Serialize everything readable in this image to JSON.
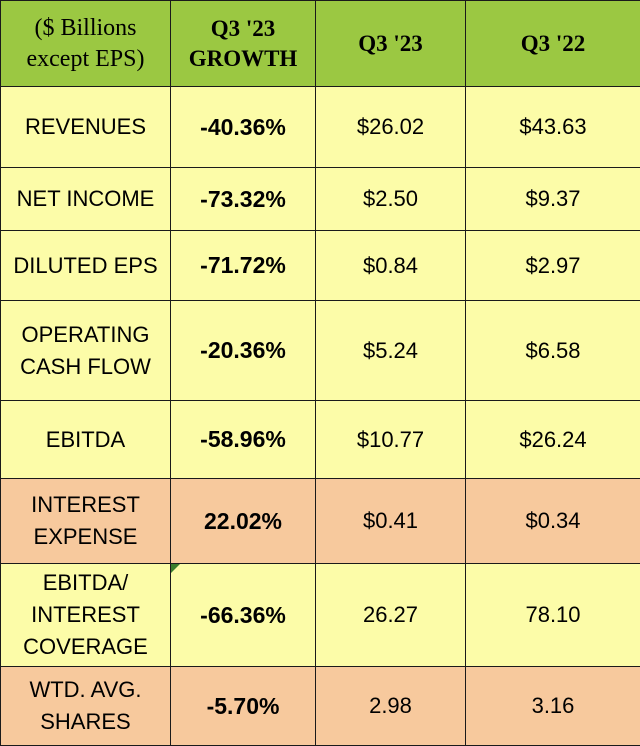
{
  "table": {
    "headers": [
      "($ Billions\nexcept EPS)",
      "Q3 '23\nGROWTH",
      "Q3 '23",
      "Q3 '22"
    ],
    "rows": [
      {
        "metric": "REVENUES",
        "growth": "-40.36%",
        "q3_23": "$26.02",
        "q3_22": "$43.63"
      },
      {
        "metric": "NET INCOME",
        "growth": "-73.32%",
        "q3_23": "$2.50",
        "q3_22": "$9.37"
      },
      {
        "metric": "DILUTED EPS",
        "growth": "-71.72%",
        "q3_23": "$0.84",
        "q3_22": "$2.97"
      },
      {
        "metric": "OPERATING\nCASH FLOW",
        "growth": "-20.36%",
        "q3_23": "$5.24",
        "q3_22": "$6.58"
      },
      {
        "metric": "EBITDA",
        "growth": "-58.96%",
        "q3_23": "$10.77",
        "q3_22": "$26.24"
      },
      {
        "metric": "INTEREST\nEXPENSE",
        "growth": "22.02%",
        "q3_23": "$0.41",
        "q3_22": "$0.34"
      },
      {
        "metric": "EBITDA/\nINTEREST\nCOVERAGE",
        "growth": "-66.36%",
        "q3_23": "26.27",
        "q3_22": "78.10"
      },
      {
        "metric": "WTD. AVG.\nSHARES",
        "growth": "-5.70%",
        "q3_23": "2.98",
        "q3_22": "3.16"
      }
    ]
  },
  "colors": {
    "header": "#9bc842",
    "row": "#fcfca8",
    "row_alt": "#f7c99d",
    "border": "#1a1a1a",
    "comment_marker": "#3a7d2c"
  }
}
